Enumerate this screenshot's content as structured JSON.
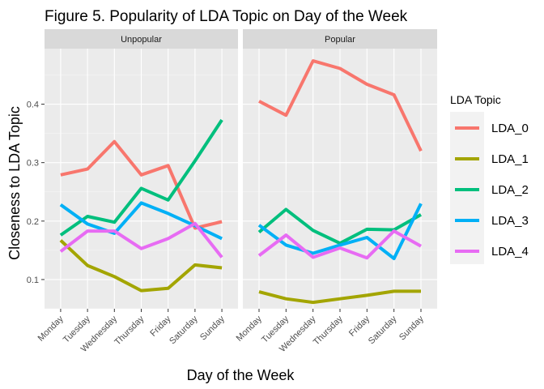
{
  "chart_data": {
    "type": "line",
    "title": "Figure 5. Popularity of LDA Topic on Day of the Week",
    "xlabel": "Day of the Week",
    "ylabel": "Closeness to LDA Topic",
    "legend_title": "LDA Topic",
    "legend_position": "right",
    "categories": [
      "Monday",
      "Tuesday",
      "Wednesday",
      "Thursday",
      "Friday",
      "Saturday",
      "Sunday"
    ],
    "ylim": [
      0.05,
      0.495
    ],
    "yticks": [
      0.1,
      0.2,
      0.3,
      0.4
    ],
    "ytick_labels": [
      "0.1",
      "0.2",
      "0.3",
      "0.4"
    ],
    "grid": true,
    "colors": {
      "LDA_0": "#F8766D",
      "LDA_1": "#A3A500",
      "LDA_2": "#00BF7D",
      "LDA_3": "#00B0F6",
      "LDA_4": "#E76BF3",
      "panel_bg": "#EBEBEB",
      "strip_bg": "#D9D9D9",
      "grid_major": "#FFFFFF"
    },
    "panels": [
      {
        "name": "Unpopular",
        "series": [
          {
            "name": "LDA_0",
            "values": [
              0.279,
              0.289,
              0.336,
              0.279,
              0.295,
              0.188,
              0.199
            ]
          },
          {
            "name": "LDA_1",
            "values": [
              0.167,
              0.124,
              0.105,
              0.081,
              0.085,
              0.125,
              0.12
            ]
          },
          {
            "name": "LDA_2",
            "values": [
              0.176,
              0.208,
              0.198,
              0.256,
              0.236,
              0.303,
              0.373
            ]
          },
          {
            "name": "LDA_3",
            "values": [
              0.228,
              0.195,
              0.179,
              0.231,
              0.213,
              0.192,
              0.17
            ]
          },
          {
            "name": "LDA_4",
            "values": [
              0.148,
              0.183,
              0.183,
              0.153,
              0.17,
              0.196,
              0.138
            ]
          }
        ]
      },
      {
        "name": "Popular",
        "series": [
          {
            "name": "LDA_0",
            "values": [
              0.405,
              0.381,
              0.474,
              0.461,
              0.434,
              0.416,
              0.32
            ]
          },
          {
            "name": "LDA_1",
            "values": [
              0.079,
              0.067,
              0.061,
              0.067,
              0.073,
              0.08,
              0.08
            ]
          },
          {
            "name": "LDA_2",
            "values": [
              0.181,
              0.22,
              0.184,
              0.162,
              0.186,
              0.185,
              0.211
            ]
          },
          {
            "name": "LDA_3",
            "values": [
              0.193,
              0.159,
              0.145,
              0.159,
              0.172,
              0.136,
              0.23
            ]
          },
          {
            "name": "LDA_4",
            "values": [
              0.141,
              0.176,
              0.138,
              0.154,
              0.137,
              0.183,
              0.157
            ]
          }
        ]
      }
    ]
  }
}
